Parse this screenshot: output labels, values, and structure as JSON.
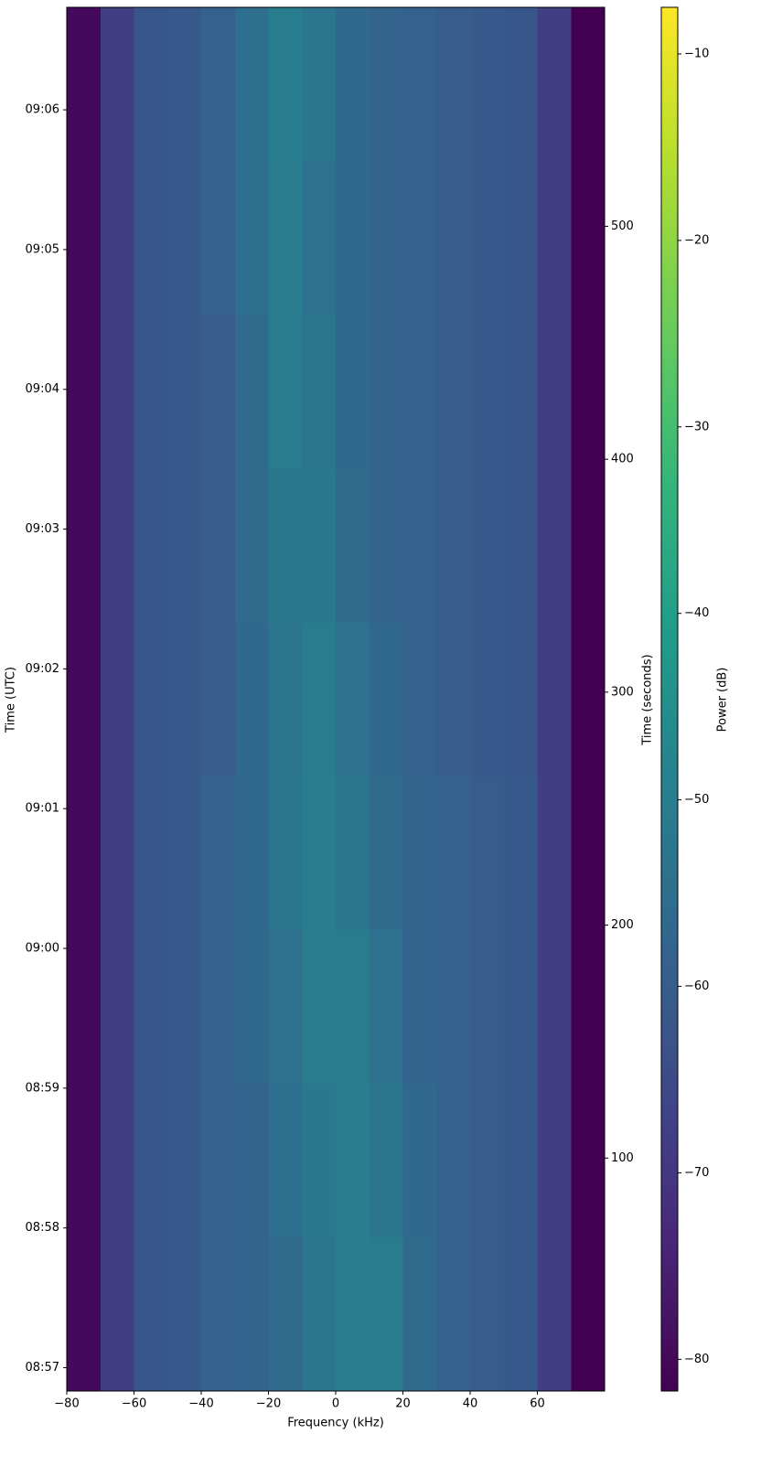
{
  "chart_data": {
    "type": "heatmap",
    "colormap": "viridis",
    "xlabel": "Frequency (kHz)",
    "ylabel": "Time (UTC)",
    "y2label": "Time (seconds)",
    "colorbar_label": "Power (dB)",
    "x_edges": [
      -80,
      -70,
      -60,
      -50,
      -40,
      -30,
      -20,
      -10,
      0,
      10,
      20,
      30,
      40,
      50,
      60,
      70,
      80
    ],
    "y_edges": [
      0,
      66,
      132,
      198,
      264,
      330,
      396,
      462,
      528,
      594
    ],
    "values": [
      [
        -80,
        -68,
        -62,
        -61,
        -59,
        -58,
        -56,
        -53,
        -50,
        -51,
        -56,
        -59,
        -60,
        -61,
        -68,
        -82
      ],
      [
        -80,
        -68,
        -62,
        -61,
        -59,
        -58,
        -55,
        -52,
        -50,
        -53,
        -57,
        -59,
        -60,
        -61,
        -68,
        -82
      ],
      [
        -80,
        -68,
        -62,
        -61,
        -59,
        -57,
        -54,
        -51,
        -51,
        -54,
        -58,
        -59,
        -60,
        -61,
        -68,
        -82
      ],
      [
        -80,
        -68,
        -62,
        -61,
        -59,
        -57,
        -53,
        -50,
        -53,
        -56,
        -58,
        -59,
        -60,
        -61,
        -68,
        -82
      ],
      [
        -80,
        -68,
        -62,
        -61,
        -60,
        -57,
        -53,
        -51,
        -54,
        -57,
        -59,
        -60,
        -61,
        -62,
        -68,
        -82
      ],
      [
        -80,
        -68,
        -62,
        -61,
        -60,
        -56,
        -52,
        -52,
        -56,
        -58,
        -59,
        -60,
        -61,
        -62,
        -68,
        -82
      ],
      [
        -80,
        -68,
        -62,
        -61,
        -60,
        -56,
        -51,
        -53,
        -57,
        -58,
        -59,
        -60,
        -61,
        -62,
        -68,
        -82
      ],
      [
        -80,
        -68,
        -62,
        -61,
        -59,
        -55,
        -51,
        -54,
        -57,
        -58,
        -59,
        -60,
        -61,
        -62,
        -68,
        -82
      ],
      [
        -80,
        -68,
        -62,
        -61,
        -59,
        -55,
        -50,
        -53,
        -57,
        -58,
        -59,
        -60,
        -61,
        -62,
        -68,
        -82
      ]
    ],
    "xlim": [
      -80,
      80
    ],
    "xticks": [
      {
        "value": -80,
        "label": "−80"
      },
      {
        "value": -60,
        "label": "−60"
      },
      {
        "value": -40,
        "label": "−40"
      },
      {
        "value": -20,
        "label": "−20"
      },
      0,
      20,
      40,
      60
    ],
    "ylim": [
      0,
      594
    ],
    "yticks": [
      {
        "value": 10,
        "label": "08:57"
      },
      {
        "value": 70,
        "label": "08:58"
      },
      {
        "value": 130,
        "label": "08:59"
      },
      {
        "value": 190,
        "label": "09:00"
      },
      {
        "value": 250,
        "label": "09:01"
      },
      {
        "value": 310,
        "label": "09:02"
      },
      {
        "value": 370,
        "label": "09:03"
      },
      {
        "value": 430,
        "label": "09:04"
      },
      {
        "value": 490,
        "label": "09:05"
      },
      {
        "value": 550,
        "label": "09:06"
      }
    ],
    "y2lim": [
      0,
      594
    ],
    "y2ticks": [
      100,
      200,
      300,
      400,
      500
    ],
    "clim": [
      -81.7,
      -7.5
    ],
    "cticks": [
      {
        "value": -80,
        "label": "−80"
      },
      {
        "value": -70,
        "label": "−70"
      },
      {
        "value": -60,
        "label": "−60"
      },
      {
        "value": -50,
        "label": "−50"
      },
      {
        "value": -40,
        "label": "−40"
      },
      {
        "value": -30,
        "label": "−30"
      },
      {
        "value": -20,
        "label": "−20"
      },
      {
        "value": -10,
        "label": "−10"
      }
    ]
  }
}
